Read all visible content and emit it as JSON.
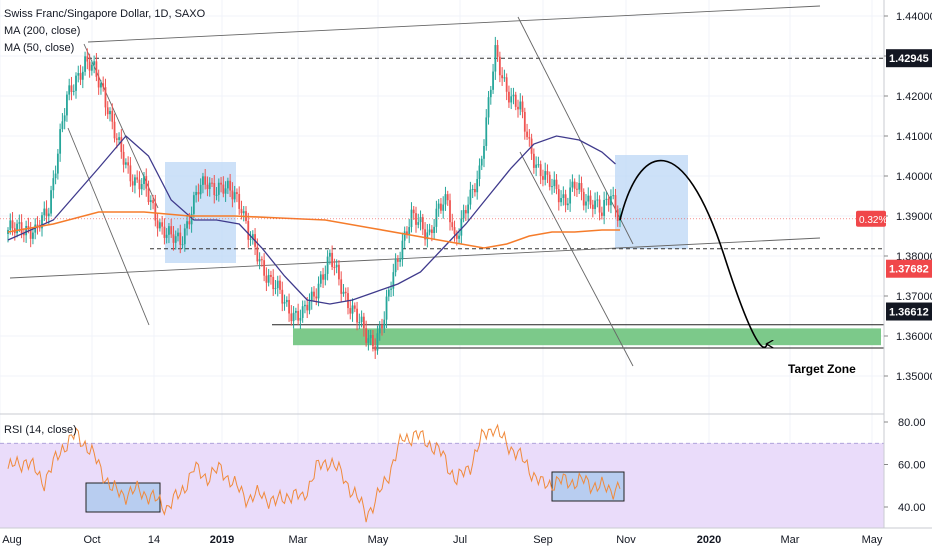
{
  "legend": {
    "title": "Swiss Franc/Singapore Dollar, 1D, SAXO",
    "ma200": "MA (200, close)",
    "ma50": "MA (50, close)"
  },
  "rsi_label": "RSI (14, close)",
  "annotation": {
    "target_zone": "Target Zone"
  },
  "colors": {
    "up": "#26a69a",
    "down": "#ef5350",
    "ma50": "#3f3a8c",
    "ma200": "#f57c2b",
    "rsi": "#f08a3c",
    "rsi_band": "#eadcfa",
    "target_zone": "#7cc98a",
    "box": "#bcd7f5",
    "rsi_box": "#b8cdf0",
    "axis_text": "#131722",
    "red_tag": "#f0474a",
    "dark_tag": "#131722"
  },
  "chart_data": [
    {
      "type": "candlestick",
      "title": "Swiss Franc/Singapore Dollar, 1D, SAXO",
      "x_ticks": [
        "Aug",
        "Oct",
        "14",
        "2019",
        "Mar",
        "May",
        "Jul",
        "Sep",
        "Nov",
        "2020",
        "Mar",
        "May"
      ],
      "y_ticks": [
        "1.44000",
        "1.43000",
        "1.42000",
        "1.41000",
        "1.40000",
        "1.39000",
        "1.38000",
        "1.37000",
        "1.36000",
        "1.35000"
      ],
      "ylim": [
        1.348,
        1.4415
      ],
      "price_tags": [
        {
          "label": "1.42945",
          "value": 1.42945,
          "style": "dark"
        },
        {
          "label": "0.32%",
          "value": 1.3893,
          "style": "red"
        },
        {
          "label": "1.37682",
          "value": 1.37682,
          "style": "red"
        },
        {
          "label": "1.36612",
          "value": 1.36612,
          "style": "dark"
        }
      ],
      "horizontal_levels": [
        1.42945,
        1.3818,
        1.3628,
        1.357
      ],
      "target_zone": [
        1.3577,
        1.3619
      ],
      "price_path": [
        [
          0,
          1.3855
        ],
        [
          6,
          1.388
        ],
        [
          12,
          1.385
        ],
        [
          18,
          1.393
        ],
        [
          22,
          1.406
        ],
        [
          26,
          1.419
        ],
        [
          30,
          1.425
        ],
        [
          34,
          1.428
        ],
        [
          38,
          1.426
        ],
        [
          42,
          1.422
        ],
        [
          45,
          1.415
        ],
        [
          48,
          1.408
        ],
        [
          52,
          1.403
        ],
        [
          56,
          1.399
        ],
        [
          60,
          1.397
        ],
        [
          64,
          1.392
        ],
        [
          68,
          1.387
        ],
        [
          72,
          1.384
        ],
        [
          76,
          1.384
        ],
        [
          80,
          1.39
        ],
        [
          84,
          1.396
        ],
        [
          88,
          1.399
        ],
        [
          92,
          1.397
        ],
        [
          96,
          1.396
        ],
        [
          100,
          1.396
        ],
        [
          103,
          1.393
        ],
        [
          106,
          1.385
        ],
        [
          110,
          1.38
        ],
        [
          114,
          1.376
        ],
        [
          118,
          1.372
        ],
        [
          122,
          1.368
        ],
        [
          126,
          1.366
        ],
        [
          130,
          1.365
        ],
        [
          134,
          1.369
        ],
        [
          138,
          1.375
        ],
        [
          142,
          1.379
        ],
        [
          146,
          1.374
        ],
        [
          150,
          1.369
        ],
        [
          154,
          1.364
        ],
        [
          158,
          1.36
        ],
        [
          162,
          1.359
        ],
        [
          166,
          1.364
        ],
        [
          170,
          1.376
        ],
        [
          174,
          1.384
        ],
        [
          178,
          1.389
        ],
        [
          182,
          1.388
        ],
        [
          186,
          1.386
        ],
        [
          190,
          1.391
        ],
        [
          194,
          1.394
        ],
        [
          197,
          1.385
        ],
        [
          200,
          1.388
        ],
        [
          204,
          1.394
        ],
        [
          208,
          1.402
        ],
        [
          212,
          1.418
        ],
        [
          215,
          1.43
        ],
        [
          218,
          1.425
        ],
        [
          222,
          1.42
        ],
        [
          226,
          1.416
        ],
        [
          230,
          1.408
        ],
        [
          234,
          1.402
        ],
        [
          238,
          1.398
        ],
        [
          242,
          1.397
        ],
        [
          246,
          1.394
        ],
        [
          250,
          1.397
        ],
        [
          254,
          1.395
        ],
        [
          258,
          1.394
        ],
        [
          262,
          1.39
        ],
        [
          266,
          1.396
        ],
        [
          270,
          1.39
        ]
      ],
      "ma50_path": [
        [
          0,
          1.384
        ],
        [
          20,
          1.389
        ],
        [
          40,
          1.402
        ],
        [
          52,
          1.41
        ],
        [
          62,
          1.405
        ],
        [
          72,
          1.394
        ],
        [
          82,
          1.389
        ],
        [
          92,
          1.389
        ],
        [
          102,
          1.388
        ],
        [
          112,
          1.382
        ],
        [
          122,
          1.375
        ],
        [
          132,
          1.369
        ],
        [
          142,
          1.368
        ],
        [
          152,
          1.369
        ],
        [
          162,
          1.371
        ],
        [
          172,
          1.373
        ],
        [
          182,
          1.376
        ],
        [
          192,
          1.382
        ],
        [
          202,
          1.388
        ],
        [
          212,
          1.395
        ],
        [
          222,
          1.402
        ],
        [
          232,
          1.408
        ],
        [
          242,
          1.41
        ],
        [
          252,
          1.409
        ],
        [
          262,
          1.406
        ],
        [
          268,
          1.403
        ]
      ],
      "ma200_path": [
        [
          0,
          1.386
        ],
        [
          20,
          1.388
        ],
        [
          40,
          1.391
        ],
        [
          60,
          1.391
        ],
        [
          80,
          1.39
        ],
        [
          100,
          1.39
        ],
        [
          120,
          1.3895
        ],
        [
          140,
          1.389
        ],
        [
          160,
          1.387
        ],
        [
          180,
          1.385
        ],
        [
          200,
          1.383
        ],
        [
          210,
          1.382
        ],
        [
          220,
          1.383
        ],
        [
          230,
          1.385
        ],
        [
          240,
          1.386
        ],
        [
          250,
          1.386
        ],
        [
          262,
          1.3865
        ],
        [
          270,
          1.3865
        ]
      ],
      "projection_path": [
        [
          270,
          1.389
        ],
        [
          282,
          1.404
        ],
        [
          296,
          1.402
        ],
        [
          316,
          1.38
        ],
        [
          335,
          1.358
        ]
      ],
      "annotation": "Target Zone"
    },
    {
      "type": "line",
      "title": "RSI (14, close)",
      "y_ticks": [
        "80.00",
        "60.00",
        "40.00"
      ],
      "ylim": [
        34,
        83
      ],
      "band": [
        30,
        70
      ],
      "values_path": [
        [
          0,
          58
        ],
        [
          8,
          62
        ],
        [
          16,
          52
        ],
        [
          24,
          68
        ],
        [
          30,
          74
        ],
        [
          34,
          70
        ],
        [
          40,
          60
        ],
        [
          46,
          48
        ],
        [
          52,
          46
        ],
        [
          58,
          48
        ],
        [
          64,
          44
        ],
        [
          70,
          40
        ],
        [
          76,
          46
        ],
        [
          82,
          58
        ],
        [
          88,
          54
        ],
        [
          94,
          58
        ],
        [
          100,
          50
        ],
        [
          106,
          44
        ],
        [
          112,
          46
        ],
        [
          118,
          42
        ],
        [
          124,
          46
        ],
        [
          130,
          44
        ],
        [
          136,
          58
        ],
        [
          142,
          62
        ],
        [
          148,
          54
        ],
        [
          154,
          44
        ],
        [
          158,
          37
        ],
        [
          162,
          42
        ],
        [
          168,
          56
        ],
        [
          174,
          72
        ],
        [
          180,
          74
        ],
        [
          186,
          70
        ],
        [
          192,
          64
        ],
        [
          198,
          52
        ],
        [
          204,
          60
        ],
        [
          210,
          74
        ],
        [
          214,
          78
        ],
        [
          218,
          72
        ],
        [
          224,
          66
        ],
        [
          230,
          58
        ],
        [
          236,
          50
        ],
        [
          242,
          52
        ],
        [
          248,
          52
        ],
        [
          254,
          52
        ],
        [
          260,
          50
        ],
        [
          266,
          48
        ],
        [
          270,
          50
        ]
      ]
    }
  ]
}
